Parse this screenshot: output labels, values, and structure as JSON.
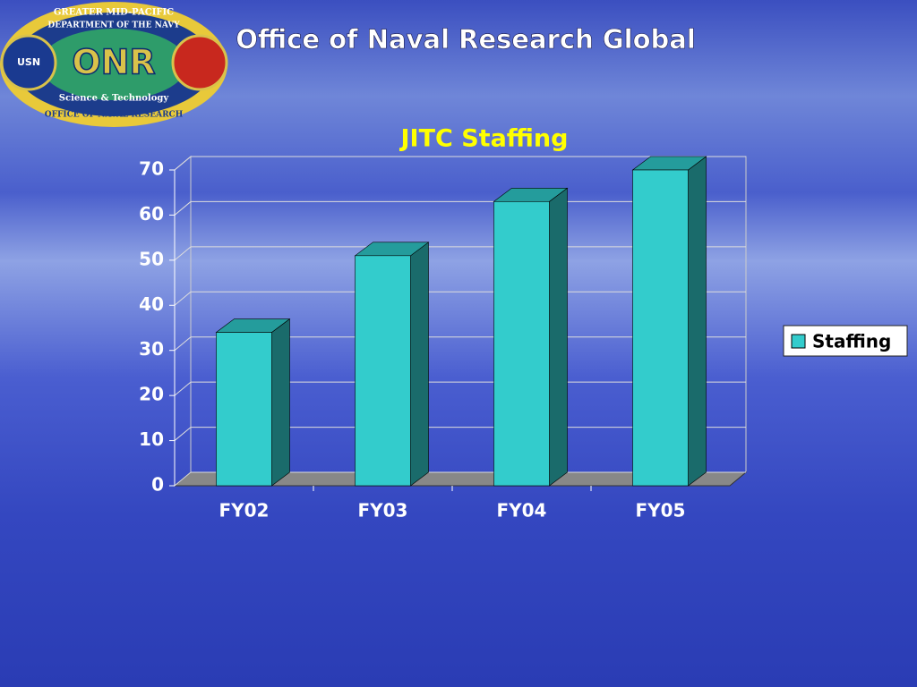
{
  "slide_title": "Office of Naval Research Global",
  "logo": {
    "top_text": "GREATER MID-PACIFIC",
    "ring_text": "DEPARTMENT OF THE NAVY",
    "center_text": "ONR",
    "middle_text": "Science & Technology",
    "bottom_text": "OFFICE OF NAVAL RESEARCH",
    "left_badge": "USN"
  },
  "chart_data": {
    "type": "bar",
    "title": "JITC Staffing",
    "categories": [
      "FY02",
      "FY03",
      "FY04",
      "FY05"
    ],
    "series": [
      {
        "name": "Staffing",
        "color": "#33cccc",
        "values": [
          34,
          51,
          63,
          70
        ]
      }
    ],
    "ylim": [
      0,
      70
    ],
    "yticks": [
      0,
      10,
      20,
      30,
      40,
      50,
      60,
      70
    ],
    "grid": true,
    "legend": "right"
  }
}
